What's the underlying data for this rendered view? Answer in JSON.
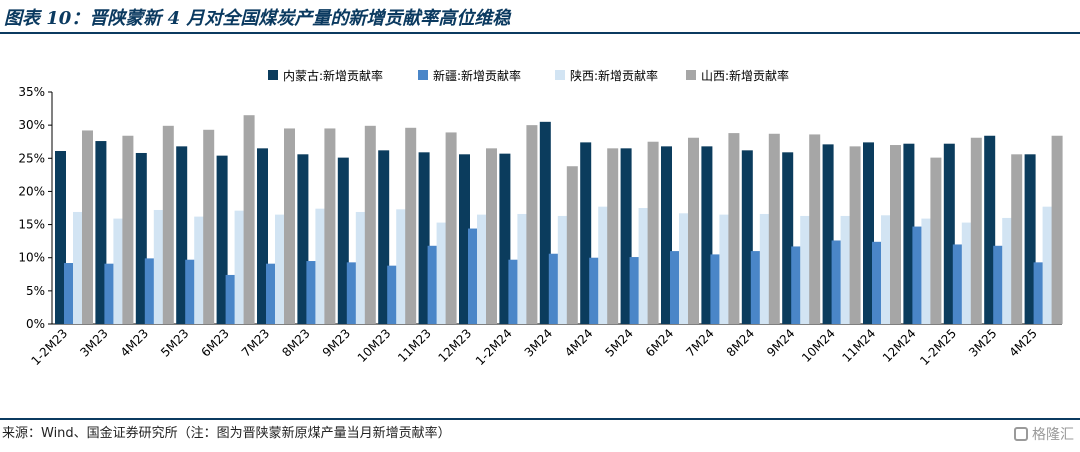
{
  "header": {
    "title": "图表 10：晋陕蒙新 4 月对全国煤炭产量的新增贡献率高位维稳"
  },
  "footer": {
    "source": "来源：Wind、国金证券研究所（注：图为晋陕蒙新原煤产量当月新增贡献率）"
  },
  "watermark": {
    "text": "格隆汇",
    "icon": "gelonghui-logo-icon"
  },
  "chart_data": {
    "type": "bar",
    "title": "",
    "xlabel": "",
    "ylabel": "",
    "ylim": [
      0,
      35
    ],
    "yticks": [
      "0%",
      "5%",
      "10%",
      "15%",
      "20%",
      "25%",
      "30%",
      "35%"
    ],
    "grid": false,
    "legend_position": "top",
    "categories": [
      "1-2M23",
      "3M23",
      "4M23",
      "5M23",
      "6M23",
      "7M23",
      "8M23",
      "9M23",
      "10M23",
      "11M23",
      "12M23",
      "1-2M24",
      "3M24",
      "4M24",
      "5M24",
      "6M24",
      "7M24",
      "8M24",
      "9M24",
      "10M24",
      "11M24",
      "12M24",
      "1-2M25",
      "3M25",
      "4M25"
    ],
    "series": [
      {
        "name": "内蒙古:新增贡献率",
        "color": "#0b3c5d",
        "values": [
          26.1,
          27.6,
          25.8,
          26.8,
          25.4,
          26.5,
          25.6,
          25.1,
          26.2,
          25.9,
          25.6,
          25.7,
          30.5,
          27.4,
          26.5,
          26.8,
          26.8,
          26.2,
          25.9,
          27.1,
          27.4,
          27.2,
          27.2,
          28.4,
          25.6
        ]
      },
      {
        "name": "新疆:新增贡献率",
        "color": "#4a86c8",
        "values": [
          9.2,
          9.1,
          9.9,
          9.7,
          7.4,
          9.1,
          9.5,
          9.3,
          8.8,
          11.8,
          14.4,
          9.7,
          10.6,
          10.0,
          10.1,
          11.0,
          10.5,
          11.0,
          11.7,
          12.6,
          12.4,
          14.7,
          12.0,
          11.8,
          9.3
        ]
      },
      {
        "name": "陕西:新增贡献率",
        "color": "#d2e4f3",
        "values": [
          16.9,
          15.9,
          17.2,
          16.2,
          17.1,
          16.5,
          17.4,
          16.9,
          17.3,
          15.3,
          16.5,
          16.6,
          16.3,
          17.7,
          17.5,
          16.7,
          16.5,
          16.6,
          16.3,
          16.3,
          16.4,
          15.9,
          15.3,
          16.0,
          17.7
        ]
      },
      {
        "name": "山西:新增贡献率",
        "color": "#a6a6a6",
        "values": [
          29.2,
          28.4,
          29.9,
          29.3,
          31.5,
          29.5,
          29.5,
          29.9,
          29.6,
          28.9,
          26.5,
          30.0,
          23.8,
          26.5,
          27.5,
          28.1,
          28.8,
          28.7,
          28.6,
          26.8,
          27.0,
          25.1,
          28.1,
          25.6,
          28.4
        ]
      }
    ]
  }
}
